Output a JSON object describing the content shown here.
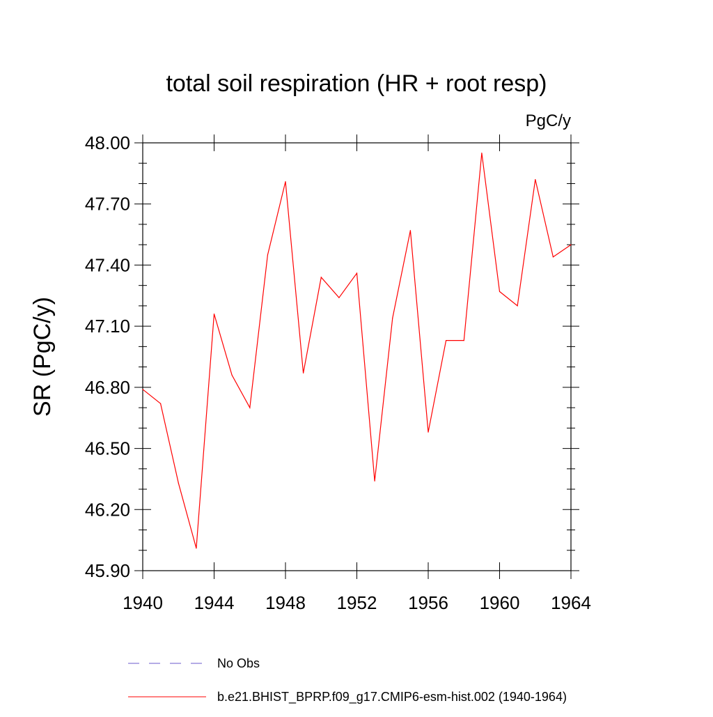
{
  "chart_data": {
    "type": "line",
    "title": "total soil respiration (HR + root resp)",
    "units_label": "PgC/y",
    "ylabel": "SR  (PgC/y)",
    "xlabel": "",
    "xlim": [
      1940,
      1964
    ],
    "ylim": [
      45.9,
      48.0
    ],
    "x_ticks": [
      1940,
      1944,
      1948,
      1952,
      1956,
      1960,
      1964
    ],
    "x_tick_labels": [
      "1940",
      "1944",
      "1948",
      "1952",
      "1956",
      "1960",
      "1964"
    ],
    "y_ticks": [
      45.9,
      46.2,
      46.5,
      46.8,
      47.1,
      47.4,
      47.7,
      48.0
    ],
    "y_tick_labels": [
      "45.90",
      "46.20",
      "46.50",
      "46.80",
      "47.10",
      "47.40",
      "47.70",
      "48.00"
    ],
    "grid": false,
    "legend_position": "bottom",
    "series": [
      {
        "name": "No Obs",
        "color": "#6a5acd",
        "style": "dashed",
        "x": [],
        "values": []
      },
      {
        "name": "b.e21.BHIST_BPRP.f09_g17.CMIP6-esm-hist.002 (1940-1964)",
        "color": "#ff0000",
        "style": "solid",
        "x": [
          1940,
          1941,
          1942,
          1943,
          1944,
          1945,
          1946,
          1947,
          1948,
          1949,
          1950,
          1951,
          1952,
          1953,
          1954,
          1955,
          1956,
          1957,
          1958,
          1959,
          1960,
          1961,
          1962,
          1963,
          1964
        ],
        "values": [
          46.79,
          46.72,
          46.33,
          46.01,
          47.16,
          46.86,
          46.7,
          47.45,
          47.81,
          46.87,
          47.34,
          47.24,
          47.36,
          46.34,
          47.14,
          47.57,
          46.58,
          47.03,
          47.03,
          47.95,
          47.27,
          47.2,
          47.82,
          47.44,
          47.5
        ]
      }
    ]
  }
}
